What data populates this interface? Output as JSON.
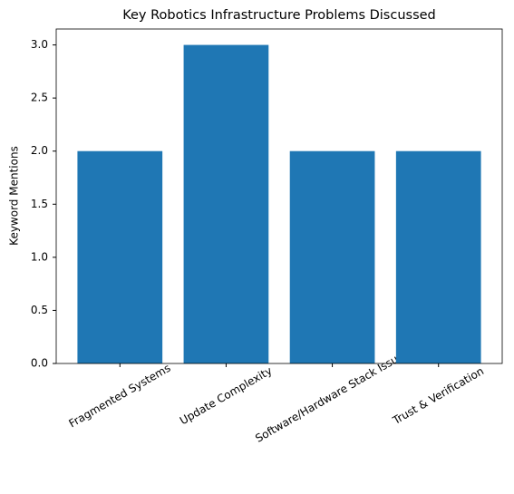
{
  "chart_data": {
    "type": "bar",
    "title": "Key Robotics Infrastructure Problems Discussed",
    "y_label": "Keyword Mentions",
    "categories": [
      "Fragmented Systems",
      "Update Complexity",
      "Software/Hardware Stack Issues",
      "Trust & Verification"
    ],
    "values": [
      2,
      3,
      2,
      2
    ],
    "color": "#1f77b4",
    "ylim": [
      0,
      3.15
    ],
    "yticks": [
      {
        "value": 0,
        "label": "0.0"
      },
      0.5,
      {
        "value": 1,
        "label": "1.0"
      },
      1.5,
      {
        "value": 2,
        "label": "2.0"
      },
      2.5,
      {
        "value": 3,
        "label": "3.0"
      }
    ],
    "grid": false
  }
}
